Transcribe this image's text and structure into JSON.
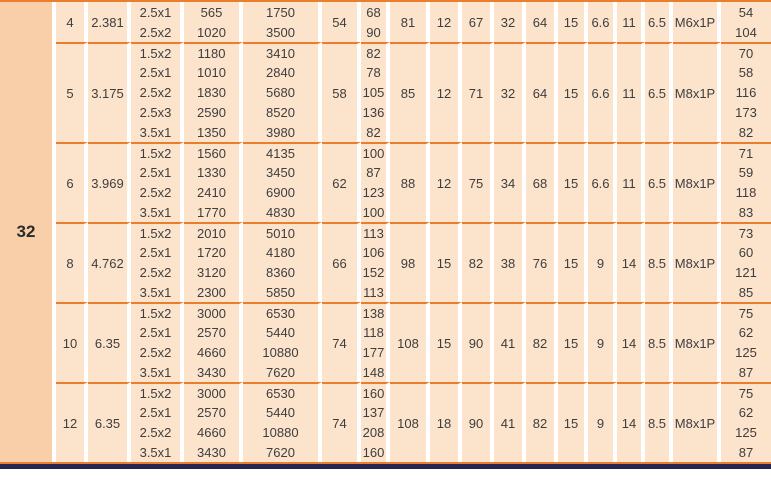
{
  "table": {
    "teeth": "32",
    "groups": [
      {
        "size": "4",
        "pitch": "2.381",
        "d": "54",
        "specs": [
          "81",
          "12",
          "67",
          "32",
          "64",
          "15",
          "6.6",
          "11",
          "6.5"
        ],
        "thread": "M6x1P",
        "rows": [
          {
            "dims": "2.5x1",
            "load1": "565",
            "load2": "1750",
            "w": "68",
            "last": "54"
          },
          {
            "dims": "2.5x2",
            "load1": "1020",
            "load2": "3500",
            "w": "90",
            "last": "104"
          }
        ]
      },
      {
        "size": "5",
        "pitch": "3.175",
        "d": "58",
        "specs": [
          "85",
          "12",
          "71",
          "32",
          "64",
          "15",
          "6.6",
          "11",
          "6.5"
        ],
        "thread": "M8x1P",
        "rows": [
          {
            "dims": "1.5x2",
            "load1": "1180",
            "load2": "3410",
            "w": "82",
            "last": "70"
          },
          {
            "dims": "2.5x1",
            "load1": "1010",
            "load2": "2840",
            "w": "78",
            "last": "58"
          },
          {
            "dims": "2.5x2",
            "load1": "1830",
            "load2": "5680",
            "w": "105",
            "last": "116"
          },
          {
            "dims": "2.5x3",
            "load1": "2590",
            "load2": "8520",
            "w": "136",
            "last": "173"
          },
          {
            "dims": "3.5x1",
            "load1": "1350",
            "load2": "3980",
            "w": "82",
            "last": "82"
          }
        ]
      },
      {
        "size": "6",
        "pitch": "3.969",
        "d": "62",
        "specs": [
          "88",
          "12",
          "75",
          "34",
          "68",
          "15",
          "6.6",
          "11",
          "6.5"
        ],
        "thread": "M8x1P",
        "rows": [
          {
            "dims": "1.5x2",
            "load1": "1560",
            "load2": "4135",
            "w": "100",
            "last": "71"
          },
          {
            "dims": "2.5x1",
            "load1": "1330",
            "load2": "3450",
            "w": "87",
            "last": "59"
          },
          {
            "dims": "2.5x2",
            "load1": "2410",
            "load2": "6900",
            "w": "123",
            "last": "118"
          },
          {
            "dims": "3.5x1",
            "load1": "1770",
            "load2": "4830",
            "w": "100",
            "last": "83"
          }
        ]
      },
      {
        "size": "8",
        "pitch": "4.762",
        "d": "66",
        "specs": [
          "98",
          "15",
          "82",
          "38",
          "76",
          "15",
          "9",
          "14",
          "8.5"
        ],
        "thread": "M8x1P",
        "rows": [
          {
            "dims": "1.5x2",
            "load1": "2010",
            "load2": "5010",
            "w": "113",
            "last": "73"
          },
          {
            "dims": "2.5x1",
            "load1": "1720",
            "load2": "4180",
            "w": "106",
            "last": "60"
          },
          {
            "dims": "2.5x2",
            "load1": "3120",
            "load2": "8360",
            "w": "152",
            "last": "121"
          },
          {
            "dims": "3.5x1",
            "load1": "2300",
            "load2": "5850",
            "w": "113",
            "last": "85"
          }
        ]
      },
      {
        "size": "10",
        "pitch": "6.35",
        "d": "74",
        "specs": [
          "108",
          "15",
          "90",
          "41",
          "82",
          "15",
          "9",
          "14",
          "8.5"
        ],
        "thread": "M8x1P",
        "rows": [
          {
            "dims": "1.5x2",
            "load1": "3000",
            "load2": "6530",
            "w": "138",
            "last": "75"
          },
          {
            "dims": "2.5x1",
            "load1": "2570",
            "load2": "5440",
            "w": "118",
            "last": "62"
          },
          {
            "dims": "2.5x2",
            "load1": "4660",
            "load2": "10880",
            "w": "177",
            "last": "125"
          },
          {
            "dims": "3.5x1",
            "load1": "3430",
            "load2": "7620",
            "w": "148",
            "last": "87"
          }
        ]
      },
      {
        "size": "12",
        "pitch": "6.35",
        "d": "74",
        "specs": [
          "108",
          "18",
          "90",
          "41",
          "82",
          "15",
          "9",
          "14",
          "8.5"
        ],
        "thread": "M8x1P",
        "rows": [
          {
            "dims": "1.5x2",
            "load1": "3000",
            "load2": "6530",
            "w": "160",
            "last": "75"
          },
          {
            "dims": "2.5x1",
            "load1": "2570",
            "load2": "5440",
            "w": "137",
            "last": "62"
          },
          {
            "dims": "2.5x2",
            "load1": "4660",
            "load2": "10880",
            "w": "208",
            "last": "125"
          },
          {
            "dims": "3.5x1",
            "load1": "3430",
            "load2": "7620",
            "w": "160",
            "last": "87"
          }
        ]
      }
    ]
  },
  "colors": {
    "rule_orange": "#E87E2E",
    "cell_bg": "#FCE3CC",
    "header_col_bg": "#F8CFA8",
    "gap_white": "#FFFFFF",
    "bottom_bar_navy": "#262650",
    "text": "#3E3E3E"
  }
}
